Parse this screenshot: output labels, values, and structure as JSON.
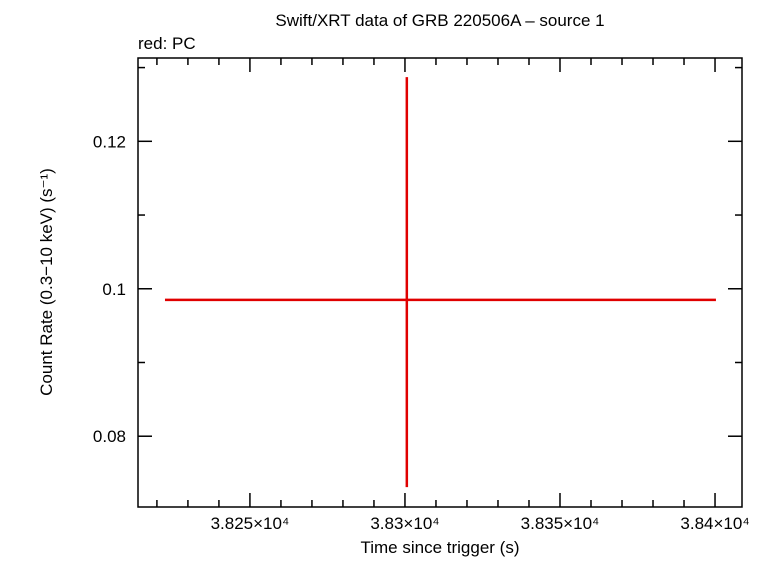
{
  "chart_data": {
    "type": "errorbar",
    "title": "Swift/XRT data of GRB 220506A – source 1",
    "subtitle": "red: PC",
    "xlabel": "Time since trigger (s)",
    "ylabel": "Count Rate (0.3−10 keV) (s⁻¹)",
    "xlim": [
      38213.9,
      38408.7
    ],
    "ylim": [
      0.0704,
      0.1313
    ],
    "xticks": [
      {
        "value": 38250,
        "label": "3.825×10⁴"
      },
      {
        "value": 38300,
        "label": "3.83×10⁴"
      },
      {
        "value": 38350,
        "label": "3.835×10⁴"
      },
      {
        "value": 38400,
        "label": "3.84×10⁴"
      }
    ],
    "yticks": [
      0.08,
      {
        "value": 0.1,
        "label": "0.1"
      },
      0.12
    ],
    "xminorticks": [
      38220,
      38230,
      38240,
      38260,
      38270,
      38280,
      38290,
      38310,
      38320,
      38330,
      38340,
      38360,
      38370,
      38380,
      38390
    ],
    "yminorticks": [
      0.09,
      0.11,
      0.13
    ],
    "series": [
      {
        "color": "#e00000",
        "x": [
          38300.6
        ],
        "values": [
          0.0985
        ],
        "xerr_minus": [
          78
        ],
        "xerr_plus": [
          99.7
        ],
        "yerr_minus": [
          0.0254
        ],
        "yerr_plus": [
          0.0302
        ]
      }
    ]
  }
}
